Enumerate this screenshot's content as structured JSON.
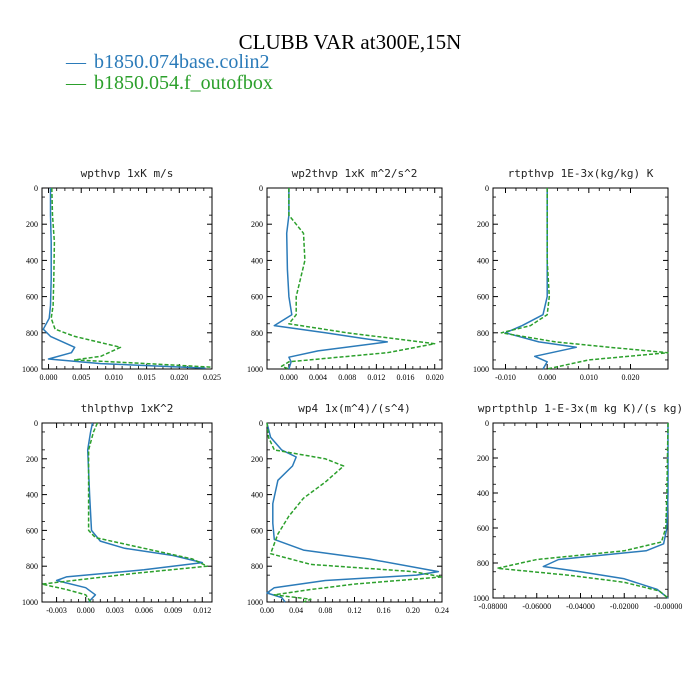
{
  "page": {
    "title": "CLUBB VAR at300E,15N"
  },
  "legend": [
    {
      "dash": "—",
      "label": "b1850.074base.colin2",
      "color": "#2b7bb9",
      "style": "solid"
    },
    {
      "dash": "—",
      "label": "b1850.054.f_outofbox",
      "color": "#2ca02c",
      "style": "dashed"
    }
  ],
  "chart_data": [
    {
      "type": "line",
      "title": "wpthvp  1xK m/s",
      "xlim": [
        -0.001,
        0.025
      ],
      "ylim": [
        1000,
        0
      ],
      "xticks": [
        "0.000",
        "0.005",
        "0.010",
        "0.015",
        "0.020",
        "0.025"
      ],
      "xtick_values": [
        0,
        0.005,
        0.01,
        0.015,
        0.02,
        0.025
      ],
      "yticks": [
        "0",
        "200",
        "400",
        "600",
        "800",
        "1000"
      ],
      "ytick_values": [
        0,
        200,
        400,
        600,
        800,
        1000
      ],
      "series": [
        {
          "points": [
            [
              0.0003,
              0
            ],
            [
              0.0003,
              150
            ],
            [
              0.0004,
              300
            ],
            [
              0.0004,
              500
            ],
            [
              0.0003,
              650
            ],
            [
              0.0001,
              720
            ],
            [
              -0.0008,
              780
            ],
            [
              0.0003,
              820
            ],
            [
              0.004,
              880
            ],
            [
              0.0035,
              910
            ],
            [
              0.0,
              945
            ],
            [
              0.008,
              970
            ],
            [
              0.024,
              995
            ]
          ]
        },
        {
          "points": [
            [
              0.0005,
              0
            ],
            [
              0.0006,
              150
            ],
            [
              0.0009,
              300
            ],
            [
              0.0008,
              500
            ],
            [
              0.0007,
              650
            ],
            [
              0.0004,
              720
            ],
            [
              0.001,
              780
            ],
            [
              0.004,
              820
            ],
            [
              0.011,
              880
            ],
            [
              0.008,
              930
            ],
            [
              0.004,
              950
            ],
            [
              0.015,
              970
            ],
            [
              0.025,
              990
            ]
          ]
        }
      ]
    },
    {
      "type": "line",
      "title": "wp2thvp  1xK m^2/s^2",
      "xlim": [
        -0.003,
        0.021
      ],
      "ylim": [
        1000,
        0
      ],
      "xticks": [
        "0.000",
        "0.004",
        "0.008",
        "0.012",
        "0.016",
        "0.020"
      ],
      "xtick_values": [
        0,
        0.004,
        0.008,
        0.012,
        0.016,
        0.02
      ],
      "yticks": [
        "0",
        "200",
        "400",
        "600",
        "800",
        "1000"
      ],
      "ytick_values": [
        0,
        200,
        400,
        600,
        800,
        1000
      ],
      "series": [
        {
          "points": [
            [
              0.0,
              0
            ],
            [
              0.0,
              150
            ],
            [
              -0.0003,
              250
            ],
            [
              -0.0002,
              450
            ],
            [
              0.0,
              600
            ],
            [
              0.0004,
              700
            ],
            [
              -0.002,
              760
            ],
            [
              0.005,
              800
            ],
            [
              0.01,
              830
            ],
            [
              0.0135,
              850
            ],
            [
              0.004,
              900
            ],
            [
              0.0,
              935
            ],
            [
              0.0003,
              960
            ],
            [
              0.0,
              1000
            ]
          ]
        },
        {
          "points": [
            [
              0.0,
              0
            ],
            [
              0.0,
              150
            ],
            [
              0.002,
              250
            ],
            [
              0.0022,
              400
            ],
            [
              0.001,
              600
            ],
            [
              0.001,
              700
            ],
            [
              0.0,
              750
            ],
            [
              0.008,
              800
            ],
            [
              0.02,
              860
            ],
            [
              0.0135,
              910
            ],
            [
              0.0,
              960
            ],
            [
              -0.001,
              985
            ],
            [
              0.0,
              1000
            ]
          ]
        }
      ]
    },
    {
      "type": "line",
      "title": "rtpthvp  1E-3x(kg/kg) K",
      "xlim": [
        -0.013,
        0.029
      ],
      "ylim": [
        1000,
        0
      ],
      "xticks": [
        "-0.010",
        "0.000",
        "0.010",
        "0.020"
      ],
      "xtick_values": [
        -0.01,
        0,
        0.01,
        0.02
      ],
      "yticks": [
        "0",
        "200",
        "400",
        "600",
        "800",
        "1000"
      ],
      "ytick_values": [
        0,
        200,
        400,
        600,
        800,
        1000
      ],
      "series": [
        {
          "points": [
            [
              0.0,
              0
            ],
            [
              0.0,
              400
            ],
            [
              0.0,
              600
            ],
            [
              -0.001,
              700
            ],
            [
              -0.006,
              760
            ],
            [
              -0.01,
              800
            ],
            [
              -0.002,
              850
            ],
            [
              0.007,
              880
            ],
            [
              -0.003,
              930
            ],
            [
              0.0,
              960
            ],
            [
              -0.001,
              1000
            ]
          ]
        },
        {
          "points": [
            [
              0.0,
              0
            ],
            [
              0.0,
              400
            ],
            [
              0.0005,
              600
            ],
            [
              0.0,
              700
            ],
            [
              -0.004,
              760
            ],
            [
              -0.011,
              800
            ],
            [
              0.002,
              850
            ],
            [
              0.015,
              880
            ],
            [
              0.029,
              910
            ],
            [
              0.01,
              950
            ],
            [
              0.0,
              1000
            ]
          ]
        }
      ]
    },
    {
      "type": "line",
      "title": "thlpthvp  1xK^2",
      "xlim": [
        -0.0045,
        0.013
      ],
      "ylim": [
        1000,
        0
      ],
      "xticks": [
        "-0.003",
        "0.000",
        "0.003",
        "0.006",
        "0.009",
        "0.012"
      ],
      "xtick_values": [
        -0.003,
        0,
        0.003,
        0.006,
        0.009,
        0.012
      ],
      "yticks": [
        "0",
        "200",
        "400",
        "600",
        "800",
        "1000"
      ],
      "ytick_values": [
        0,
        200,
        400,
        600,
        800,
        1000
      ],
      "series": [
        {
          "points": [
            [
              0.0007,
              0
            ],
            [
              0.0005,
              50
            ],
            [
              0.0002,
              150
            ],
            [
              0.0004,
              400
            ],
            [
              0.0006,
              600
            ],
            [
              0.0015,
              660
            ],
            [
              0.004,
              700
            ],
            [
              0.009,
              740
            ],
            [
              0.012,
              780
            ],
            [
              0.006,
              820
            ],
            [
              -0.002,
              860
            ],
            [
              -0.003,
              880
            ],
            [
              0.0,
              920
            ],
            [
              0.001,
              960
            ],
            [
              0.0003,
              1000
            ]
          ]
        },
        {
          "points": [
            [
              0.0012,
              0
            ],
            [
              0.0008,
              50
            ],
            [
              0.0003,
              150
            ],
            [
              0.0003,
              400
            ],
            [
              0.0003,
              600
            ],
            [
              0.001,
              640
            ],
            [
              0.006,
              700
            ],
            [
              0.011,
              760
            ],
            [
              0.0125,
              800
            ],
            [
              0.005,
              840
            ],
            [
              -0.0045,
              900
            ],
            [
              -0.002,
              930
            ],
            [
              0.0,
              960
            ],
            [
              0.0005,
              1000
            ]
          ]
        }
      ]
    },
    {
      "type": "line",
      "title": "wp4  1x(m^4)/(s^4)",
      "xlim": [
        0.0,
        0.24
      ],
      "ylim": [
        1000,
        0
      ],
      "xticks": [
        "0.00",
        "0.04",
        "0.08",
        "0.12",
        "0.16",
        "0.20",
        "0.24"
      ],
      "xtick_values": [
        0,
        0.04,
        0.08,
        0.12,
        0.16,
        0.2,
        0.24
      ],
      "yticks": [
        "0",
        "200",
        "400",
        "600",
        "800",
        "1000"
      ],
      "ytick_values": [
        0,
        200,
        400,
        600,
        800,
        1000
      ],
      "series": [
        {
          "points": [
            [
              0.0,
              0
            ],
            [
              0.005,
              80
            ],
            [
              0.02,
              150
            ],
            [
              0.04,
              190
            ],
            [
              0.035,
              240
            ],
            [
              0.015,
              320
            ],
            [
              0.008,
              450
            ],
            [
              0.008,
              560
            ],
            [
              0.01,
              650
            ],
            [
              0.05,
              710
            ],
            [
              0.14,
              760
            ],
            [
              0.235,
              830
            ],
            [
              0.205,
              850
            ],
            [
              0.08,
              880
            ],
            [
              0.01,
              920
            ],
            [
              0.0,
              950
            ],
            [
              0.02,
              975
            ],
            [
              0.025,
              1000
            ]
          ]
        },
        {
          "points": [
            [
              0.0,
              0
            ],
            [
              0.002,
              80
            ],
            [
              0.01,
              150
            ],
            [
              0.08,
              200
            ],
            [
              0.105,
              240
            ],
            [
              0.08,
              330
            ],
            [
              0.05,
              420
            ],
            [
              0.03,
              520
            ],
            [
              0.015,
              620
            ],
            [
              0.005,
              730
            ],
            [
              0.06,
              790
            ],
            [
              0.2,
              830
            ],
            [
              0.24,
              860
            ],
            [
              0.12,
              900
            ],
            [
              0.06,
              930
            ],
            [
              0.01,
              960
            ],
            [
              0.06,
              985
            ],
            [
              0.05,
              1000
            ]
          ]
        }
      ]
    },
    {
      "type": "line",
      "title": "wprtpthlp  1-E-3x(m kg K)/(s kg)",
      "xlim": [
        -0.08,
        0.0
      ],
      "ylim": [
        1000,
        0
      ],
      "xticks": [
        "-0.08000",
        "-0.06000",
        "-0.04000",
        "-0.02000",
        "-0.00000"
      ],
      "xtick_values": [
        -0.08,
        -0.06,
        -0.04,
        -0.02,
        0
      ],
      "yticks": [
        "0",
        "200",
        "400",
        "600",
        "800",
        "1000"
      ],
      "ytick_values": [
        0,
        200,
        400,
        600,
        800,
        1000
      ],
      "series": [
        {
          "points": [
            [
              0.0,
              0
            ],
            [
              0.0,
              400
            ],
            [
              -0.0005,
              600
            ],
            [
              -0.002,
              690
            ],
            [
              -0.01,
              730
            ],
            [
              -0.05,
              780
            ],
            [
              -0.057,
              820
            ],
            [
              -0.04,
              850
            ],
            [
              -0.02,
              890
            ],
            [
              -0.005,
              950
            ],
            [
              0.0,
              1000
            ]
          ]
        },
        {
          "points": [
            [
              0.0,
              0
            ],
            [
              -0.0005,
              400
            ],
            [
              -0.001,
              600
            ],
            [
              -0.003,
              680
            ],
            [
              -0.02,
              730
            ],
            [
              -0.06,
              780
            ],
            [
              -0.078,
              830
            ],
            [
              -0.045,
              870
            ],
            [
              -0.02,
              910
            ],
            [
              -0.004,
              960
            ],
            [
              0.0,
              1000
            ]
          ]
        }
      ]
    }
  ]
}
